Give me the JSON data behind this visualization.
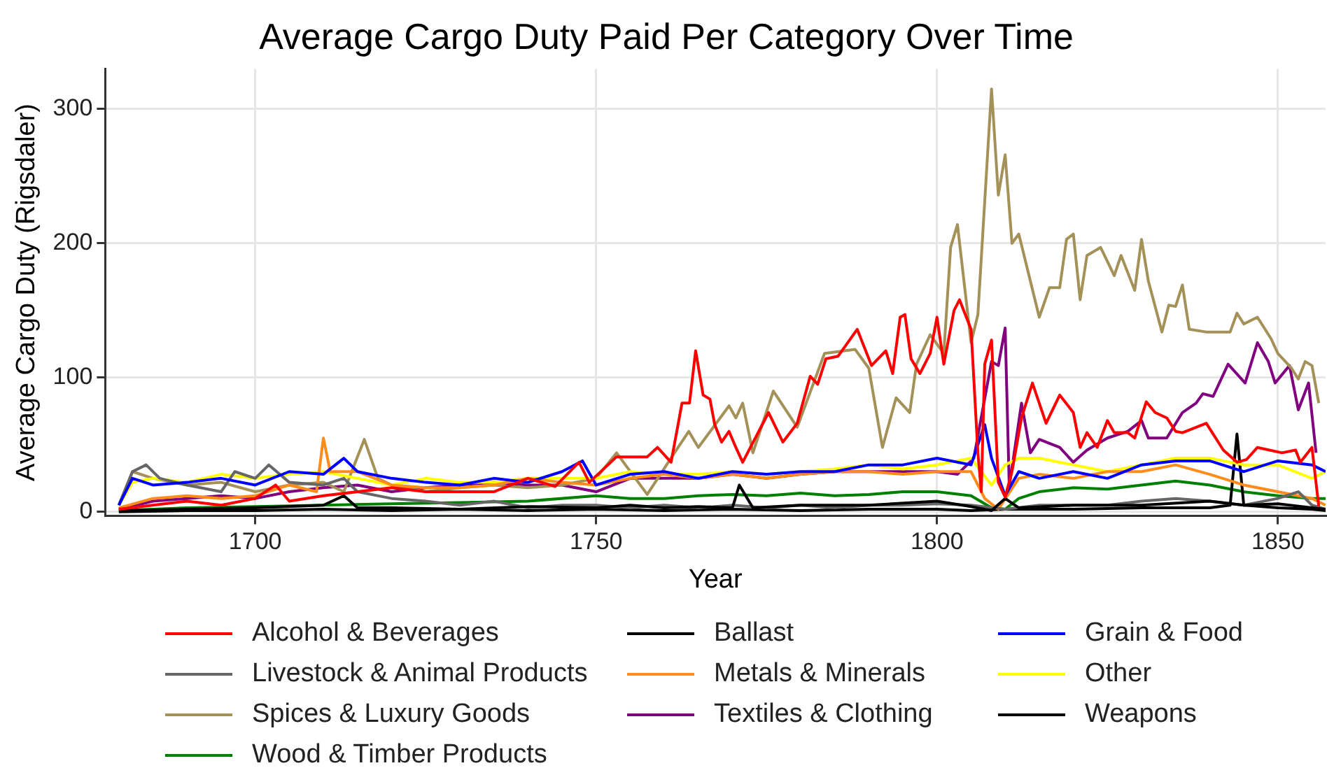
{
  "chart_data": {
    "type": "line",
    "title": "Average Cargo Duty Paid Per Category Over Time",
    "xlabel": "Year",
    "ylabel": "Average Cargo Duty (Rigsdaler)",
    "xlim": [
      1678,
      1857
    ],
    "xticks": [
      1700,
      1750,
      1800,
      1850
    ],
    "ylim": [
      -3,
      330
    ],
    "yticks": [
      0,
      100,
      200,
      300
    ],
    "grid": true,
    "legend": "bottom",
    "marker": "none",
    "line_style": "solid",
    "series": [
      {
        "name": "Alcohol & Beverages",
        "color": "#ff0000",
        "x": [
          1680,
          1685,
          1690,
          1695,
          1700,
          1703,
          1705,
          1710,
          1715,
          1720,
          1725,
          1730,
          1735,
          1740,
          1744,
          1747.5,
          1749,
          1753,
          1757.5,
          1759,
          1761,
          1762.6,
          1763.7,
          1764.6,
          1765.7,
          1766.7,
          1767.4,
          1768.4,
          1769.5,
          1770.5,
          1771.5,
          1775.3,
          1777.4,
          1779.5,
          1781.4,
          1782.5,
          1783.7,
          1785.5,
          1788.3,
          1790.4,
          1792.5,
          1793.5,
          1794.6,
          1795.3,
          1796.2,
          1797.5,
          1799,
          1800,
          1801,
          1802.5,
          1803.3,
          1805,
          1806,
          1806.5,
          1807,
          1808,
          1809,
          1810,
          1811,
          1812.4,
          1814,
          1816,
          1818,
          1820,
          1821,
          1822,
          1823.5,
          1825,
          1826,
          1828,
          1829,
          1830.7,
          1832,
          1833.7,
          1835,
          1836,
          1839.5,
          1842,
          1844,
          1845.4,
          1847,
          1850.6,
          1852.6,
          1853.3,
          1855,
          1856
        ],
        "values": [
          2,
          5,
          8,
          5,
          10,
          20,
          8,
          12,
          15,
          18,
          15,
          15,
          15,
          25,
          19,
          37,
          22,
          41,
          41,
          48,
          37,
          81,
          81,
          120,
          87,
          84,
          65,
          52,
          60,
          48,
          37,
          74,
          52,
          66,
          101,
          95,
          114,
          116,
          136,
          109,
          120,
          103,
          145,
          147,
          114,
          103,
          118,
          145,
          110,
          150,
          158,
          136,
          44,
          15,
          110,
          128,
          22,
          11,
          30,
          70,
          96,
          66,
          87,
          74,
          48,
          59,
          48,
          68,
          59,
          59,
          55,
          82,
          74,
          70,
          60,
          59,
          66,
          46,
          37,
          39,
          48,
          44,
          46,
          37,
          48,
          4
        ]
      },
      {
        "name": "Ballast",
        "color": "#000000",
        "x": [
          1680,
          1690,
          1700,
          1710,
          1713,
          1715,
          1720,
          1730,
          1740,
          1750,
          1755,
          1760,
          1765,
          1770,
          1771,
          1773,
          1780,
          1790,
          1800,
          1805,
          1808,
          1810,
          1812,
          1820,
          1830,
          1840,
          1845,
          1850,
          1855,
          1857
        ],
        "values": [
          1,
          2,
          3,
          5,
          12,
          3,
          3,
          2,
          4,
          3,
          5,
          3,
          4,
          3,
          20,
          3,
          5,
          5,
          8,
          4,
          1,
          10,
          3,
          5,
          5,
          8,
          5,
          6,
          3,
          2
        ]
      },
      {
        "name": "Grain & Food",
        "color": "#0000ff",
        "x": [
          1680,
          1682,
          1685,
          1690,
          1695,
          1700,
          1705,
          1710,
          1713,
          1715,
          1720,
          1725,
          1730,
          1735,
          1740,
          1745,
          1748,
          1750,
          1755,
          1760,
          1765,
          1770,
          1775,
          1780,
          1785,
          1790,
          1795,
          1800,
          1805,
          1807,
          1808,
          1810,
          1812,
          1815,
          1820,
          1825,
          1830,
          1835,
          1840,
          1845,
          1850,
          1855,
          1857
        ],
        "values": [
          5,
          25,
          20,
          22,
          25,
          20,
          30,
          28,
          40,
          30,
          25,
          22,
          20,
          25,
          22,
          30,
          38,
          20,
          28,
          30,
          25,
          30,
          28,
          30,
          30,
          35,
          35,
          40,
          35,
          65,
          40,
          12,
          30,
          25,
          30,
          25,
          35,
          38,
          38,
          30,
          38,
          35,
          30
        ]
      },
      {
        "name": "Livestock & Animal Products",
        "color": "#666666",
        "x": [
          1680,
          1682,
          1684,
          1686,
          1690,
          1695,
          1697,
          1700,
          1702,
          1705,
          1710,
          1713,
          1715,
          1720,
          1725,
          1730,
          1735,
          1740,
          1745,
          1750,
          1755,
          1760,
          1765,
          1770,
          1775,
          1780,
          1785,
          1790,
          1795,
          1800,
          1805,
          1810,
          1815,
          1820,
          1825,
          1830,
          1835,
          1840,
          1845,
          1850,
          1853,
          1855,
          1857
        ],
        "values": [
          5,
          30,
          35,
          25,
          20,
          15,
          30,
          25,
          35,
          22,
          20,
          25,
          15,
          10,
          8,
          5,
          8,
          3,
          5,
          5,
          3,
          5,
          3,
          5,
          3,
          5,
          3,
          5,
          5,
          6,
          5,
          2,
          5,
          5,
          5,
          8,
          10,
          8,
          5,
          10,
          15,
          5,
          2
        ]
      },
      {
        "name": "Metals & Minerals",
        "color": "#ff8c1a",
        "x": [
          1680,
          1685,
          1690,
          1695,
          1700,
          1705,
          1709,
          1710,
          1711,
          1715,
          1720,
          1725,
          1730,
          1735,
          1740,
          1745,
          1750,
          1755,
          1760,
          1765,
          1770,
          1775,
          1780,
          1785,
          1790,
          1795,
          1800,
          1805,
          1807,
          1809,
          1812,
          1815,
          1820,
          1825,
          1830,
          1835,
          1840,
          1845,
          1850,
          1855,
          1857
        ],
        "values": [
          3,
          10,
          12,
          10,
          12,
          20,
          15,
          55,
          30,
          30,
          20,
          18,
          18,
          20,
          25,
          22,
          20,
          25,
          28,
          25,
          28,
          25,
          28,
          30,
          30,
          28,
          30,
          30,
          10,
          2,
          25,
          28,
          25,
          30,
          30,
          35,
          28,
          20,
          15,
          10,
          5
        ]
      },
      {
        "name": "Other",
        "color": "#ffff00",
        "x": [
          1680,
          1682,
          1685,
          1690,
          1695,
          1700,
          1705,
          1710,
          1715,
          1720,
          1725,
          1730,
          1735,
          1740,
          1745,
          1750,
          1755,
          1760,
          1765,
          1770,
          1775,
          1780,
          1785,
          1790,
          1795,
          1800,
          1805,
          1808,
          1810,
          1812,
          1815,
          1820,
          1825,
          1830,
          1835,
          1840,
          1845,
          1850,
          1855,
          1857
        ],
        "values": [
          5,
          22,
          25,
          22,
          28,
          25,
          28,
          30,
          25,
          20,
          25,
          22,
          22,
          25,
          25,
          25,
          30,
          28,
          28,
          30,
          28,
          30,
          32,
          35,
          32,
          35,
          40,
          20,
          35,
          40,
          40,
          35,
          30,
          35,
          40,
          40,
          35,
          35,
          25,
          30
        ]
      },
      {
        "name": "Spices & Luxury Goods",
        "color": "#a39158",
        "x": [
          1680,
          1682,
          1685,
          1690,
          1695,
          1700,
          1705,
          1710,
          1713,
          1716,
          1718,
          1720,
          1725,
          1730,
          1735,
          1740,
          1745,
          1750,
          1753,
          1757.5,
          1761.5,
          1763.6,
          1765,
          1769.5,
          1770.5,
          1771.5,
          1773,
          1776,
          1779.5,
          1783.5,
          1788,
          1790,
          1792,
          1794,
          1796,
          1797,
          1799,
          1801,
          1802,
          1803,
          1805,
          1806,
          1808,
          1809,
          1810,
          1811,
          1812,
          1815,
          1816.5,
          1818,
          1819,
          1820,
          1821,
          1822,
          1824,
          1826,
          1827,
          1829,
          1830,
          1831,
          1833,
          1834,
          1835,
          1836,
          1837,
          1839.5,
          1843,
          1844,
          1845,
          1847,
          1849,
          1850,
          1852,
          1853,
          1854,
          1855,
          1856
        ],
        "values": [
          5,
          30,
          25,
          20,
          22,
          15,
          20,
          22,
          15,
          54,
          25,
          20,
          15,
          18,
          20,
          18,
          20,
          25,
          44,
          13,
          44,
          60,
          48,
          79,
          70,
          81,
          44,
          90,
          63,
          118,
          121,
          107,
          48,
          85,
          74,
          110,
          132,
          118,
          197,
          214,
          126,
          147,
          315,
          236,
          266,
          200,
          207,
          145,
          167,
          167,
          203,
          207,
          158,
          191,
          197,
          176,
          191,
          165,
          203,
          172,
          134,
          154,
          153,
          169,
          136,
          134,
          134,
          148,
          140,
          145,
          129,
          118,
          107,
          99,
          112,
          109,
          81
        ]
      },
      {
        "name": "Textiles & Clothing",
        "color": "#800080",
        "x": [
          1680,
          1685,
          1690,
          1695,
          1700,
          1705,
          1710,
          1715,
          1720,
          1725,
          1730,
          1735,
          1740,
          1745,
          1750,
          1755,
          1760,
          1765,
          1770,
          1775,
          1780,
          1785,
          1790,
          1795,
          1800,
          1803,
          1805.4,
          1808,
          1809,
          1810,
          1810.6,
          1812.4,
          1813.7,
          1815,
          1818,
          1820,
          1822,
          1825,
          1828,
          1830,
          1831,
          1833.7,
          1836,
          1838,
          1839,
          1840.5,
          1842.7,
          1845.2,
          1847,
          1848.6,
          1849.6,
          1851.7,
          1853,
          1854.5,
          1855.6
        ],
        "values": [
          2,
          8,
          10,
          12,
          10,
          15,
          18,
          20,
          15,
          18,
          20,
          22,
          20,
          20,
          15,
          25,
          25,
          25,
          28,
          25,
          28,
          30,
          30,
          30,
          30,
          28,
          40,
          112,
          109,
          137,
          19,
          81,
          44,
          54,
          48,
          37,
          46,
          55,
          60,
          68,
          55,
          55,
          74,
          81,
          88,
          86,
          110,
          96,
          126,
          112,
          96,
          109,
          76,
          96,
          44
        ]
      },
      {
        "name": "Weapons",
        "color": "#000000",
        "x": [
          1680,
          1690,
          1700,
          1710,
          1720,
          1730,
          1740,
          1750,
          1760,
          1770,
          1780,
          1790,
          1800,
          1805,
          1810,
          1820,
          1830,
          1840,
          1843,
          1844,
          1845,
          1850,
          1855,
          1857
        ],
        "values": [
          0,
          1,
          1,
          2,
          1,
          2,
          1,
          2,
          1,
          2,
          1,
          2,
          2,
          1,
          2,
          2,
          3,
          3,
          5,
          58,
          5,
          3,
          2,
          1
        ]
      },
      {
        "name": "Wood & Timber Products",
        "color": "#008000",
        "x": [
          1680,
          1685,
          1690,
          1700,
          1710,
          1720,
          1730,
          1740,
          1750,
          1755,
          1760,
          1765,
          1770,
          1775,
          1780,
          1785,
          1790,
          1795,
          1800,
          1805,
          1808,
          1810,
          1812,
          1815,
          1820,
          1825,
          1830,
          1835,
          1840,
          1845,
          1850,
          1855,
          1857
        ],
        "values": [
          1,
          2,
          3,
          4,
          5,
          6,
          7,
          8,
          12,
          10,
          10,
          12,
          13,
          12,
          14,
          12,
          13,
          15,
          15,
          12,
          3,
          2,
          10,
          15,
          18,
          17,
          20,
          23,
          20,
          15,
          12,
          10,
          10
        ]
      }
    ]
  }
}
